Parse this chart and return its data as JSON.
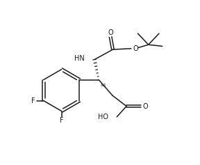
{
  "background_color": "#ffffff",
  "line_color": "#1a1a1a",
  "line_width": 1.1,
  "font_size": 7.0,
  "fig_width": 2.88,
  "fig_height": 2.37,
  "dpi": 100,
  "xlim": [
    0,
    10
  ],
  "ylim": [
    0,
    8.5
  ]
}
